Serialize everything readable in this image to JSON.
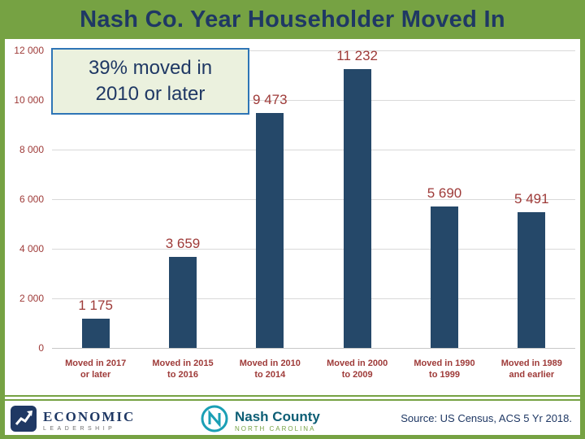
{
  "slide": {
    "title": "Nash Co. Year Householder Moved In"
  },
  "chart_data": {
    "type": "bar",
    "title": "Nash Co. Year Householder Moved In",
    "categories": [
      [
        "Moved in 2017",
        "or later"
      ],
      [
        "Moved in 2015",
        "to 2016"
      ],
      [
        "Moved in 2010",
        "to 2014"
      ],
      [
        "Moved in 2000",
        "to 2009"
      ],
      [
        "Moved in 1990",
        "to 1999"
      ],
      [
        "Moved in 1989",
        "and earlier"
      ]
    ],
    "values": [
      1175,
      3659,
      9473,
      11232,
      5690,
      5491
    ],
    "data_labels": [
      "1 175",
      "3 659",
      "9 473",
      "11 232",
      "5 690",
      "5 491"
    ],
    "y_ticks": [
      {
        "value": 12000,
        "label": "12 000"
      },
      {
        "value": 10000,
        "label": "10 000"
      },
      {
        "value": 8000,
        "label": "8 000"
      },
      {
        "value": 6000,
        "label": "6 000"
      },
      {
        "value": 4000,
        "label": "4 000"
      },
      {
        "value": 2000,
        "label": "2 000"
      },
      {
        "value": 0,
        "label": "0"
      }
    ],
    "ylim": [
      0,
      12000
    ],
    "grid": true,
    "legend": false,
    "xlabel": "",
    "ylabel": "",
    "annotation": {
      "line1": "39% moved in",
      "line2": "2010 or later"
    }
  },
  "footer": {
    "economic_line1": "ECONOMIC",
    "economic_line2": "LEADERSHIP",
    "nash_name": "Nash County",
    "nash_sub": "NORTH CAROLINA",
    "source": "Source: US Census, ACS 5 Yr 2018."
  },
  "colors": {
    "header_green": "#76A243",
    "title_navy": "#1F3864",
    "bar_blue": "#254869",
    "label_maroon": "#9E3A38",
    "annotation_bg": "#EBF1DE",
    "annotation_border": "#2E75B6",
    "gridline": "#D9D9D9",
    "nash_teal": "#1A9FB5"
  }
}
